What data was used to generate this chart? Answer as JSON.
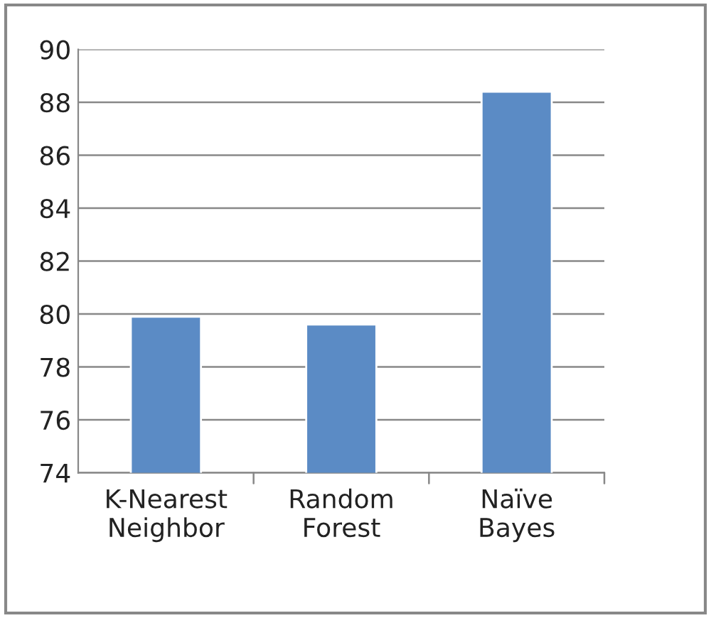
{
  "chart_data": {
    "type": "bar",
    "categories": [
      "K-Nearest\nNeighbor",
      "Random\nForest",
      "Naïve\nBayes"
    ],
    "values": [
      79.9,
      79.6,
      88.4
    ],
    "color": "#5b8bc5",
    "ylim": [
      74,
      90
    ],
    "yticks": [
      74,
      76,
      78,
      80,
      82,
      84,
      86,
      88,
      90
    ],
    "grid": "y",
    "legend": false
  }
}
